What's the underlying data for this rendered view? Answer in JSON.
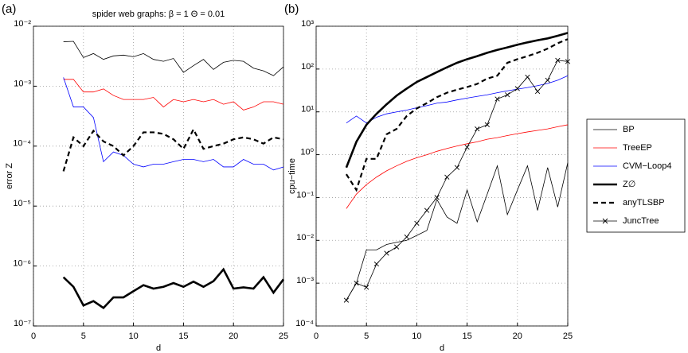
{
  "chart_data": [
    {
      "type": "line",
      "label": "(a)",
      "title": "spider web graphs: β = 1   Θ = 0.01",
      "xlabel": "d",
      "ylabel": "error Z",
      "xlim": [
        0,
        25
      ],
      "xticks": [
        0,
        5,
        10,
        15,
        20,
        25
      ],
      "ylim": [
        1e-07,
        0.01
      ],
      "log_y": true,
      "grid": true,
      "yticks": [
        {
          "value": 1e-07,
          "label": "10⁻⁷"
        },
        {
          "value": 1e-06,
          "label": "10⁻⁶"
        },
        {
          "value": 1e-05,
          "label": "10⁻⁵"
        },
        {
          "value": 0.0001,
          "label": "10⁻⁴"
        },
        {
          "value": 0.001,
          "label": "10⁻³"
        },
        {
          "value": 0.01,
          "label": "10⁻²"
        }
      ],
      "x": [
        3,
        4,
        5,
        6,
        7,
        8,
        9,
        10,
        11,
        12,
        13,
        14,
        15,
        16,
        17,
        18,
        19,
        20,
        21,
        22,
        23,
        24,
        25
      ],
      "series": [
        {
          "name": "BP",
          "color": "#000000",
          "line_width": 0.8,
          "values": [
            0.0055,
            0.0056,
            0.003,
            0.0035,
            0.0028,
            0.0032,
            0.0033,
            0.0031,
            0.0035,
            0.0028,
            0.0026,
            0.0029,
            0.0017,
            0.0022,
            0.0028,
            0.0019,
            0.0025,
            0.0027,
            0.0026,
            0.002,
            0.0018,
            0.0015,
            0.0021
          ]
        },
        {
          "name": "TreeEP",
          "color": "#ff0000",
          "line_width": 0.8,
          "values": [
            0.0013,
            0.0013,
            0.0008,
            0.0008,
            0.0009,
            0.0007,
            0.0006,
            0.0006,
            0.0006,
            0.00065,
            0.00045,
            0.0006,
            0.00055,
            0.0006,
            0.00055,
            0.0006,
            0.0005,
            0.00055,
            0.0004,
            0.00045,
            0.00055,
            0.00055,
            0.0005
          ]
        },
        {
          "name": "CVM−Loop4",
          "color": "#0000ff",
          "line_width": 0.8,
          "values": [
            0.0014,
            0.00045,
            0.00045,
            0.0003,
            5.5e-05,
            8e-05,
            7e-05,
            5e-05,
            4.5e-05,
            5e-05,
            5e-05,
            5.5e-05,
            6e-05,
            6e-05,
            5.5e-05,
            6e-05,
            4.5e-05,
            4.5e-05,
            6e-05,
            5e-05,
            5e-05,
            4e-05,
            4.5e-05
          ]
        },
        {
          "name": "Z∅",
          "color": "#000000",
          "line_width": 2.6,
          "values": [
            6.5e-07,
            4.5e-07,
            2.2e-07,
            2.6e-07,
            2e-07,
            3e-07,
            3e-07,
            3.8e-07,
            4.8e-07,
            4.2e-07,
            4.5e-07,
            5.2e-07,
            4.5e-07,
            5.5e-07,
            4.5e-07,
            5.6e-07,
            8.8e-07,
            4.2e-07,
            4.4e-07,
            4.2e-07,
            6.5e-07,
            3.6e-07,
            6e-07
          ]
        },
        {
          "name": "anyTLSBP",
          "color": "#000000",
          "line_width": 2.2,
          "line_style": "dashed",
          "values": [
            3.8e-05,
            0.00014,
            0.0001,
            0.00018,
            0.00012,
            0.0001,
            7e-05,
            0.0001,
            0.00017,
            0.00017,
            0.00016,
            0.00013,
            9e-05,
            0.00019,
            9e-05,
            0.0001,
            0.00011,
            0.00013,
            0.00014,
            0.00013,
            0.00011,
            0.00014,
            0.00013
          ]
        }
      ]
    },
    {
      "type": "line",
      "label": "(b)",
      "xlabel": "d",
      "ylabel": "cpu−time",
      "xlim": [
        0,
        25
      ],
      "xticks": [
        0,
        5,
        10,
        15,
        20,
        25
      ],
      "ylim": [
        0.0001,
        1000
      ],
      "log_y": true,
      "grid": true,
      "legend": "outside right",
      "yticks": [
        {
          "value": 0.0001,
          "label": "10⁻⁴"
        },
        {
          "value": 0.001,
          "label": "10⁻³"
        },
        {
          "value": 0.01,
          "label": "10⁻²"
        },
        {
          "value": 0.1,
          "label": "10⁻¹"
        },
        {
          "value": 1,
          "label": "10⁰"
        },
        {
          "value": 10,
          "label": "10¹"
        },
        {
          "value": 100,
          "label": "10²"
        },
        {
          "value": 1000,
          "label": "10³"
        }
      ],
      "x": [
        3,
        4,
        5,
        6,
        7,
        8,
        9,
        10,
        11,
        12,
        13,
        14,
        15,
        16,
        17,
        18,
        19,
        20,
        21,
        22,
        23,
        24,
        25
      ],
      "series": [
        {
          "name": "BP",
          "color": "#000000",
          "line_width": 0.8,
          "values": [
            0.0004,
            0.001,
            0.006,
            0.006,
            0.008,
            0.009,
            0.01,
            0.013,
            0.017,
            0.09,
            0.035,
            0.025,
            0.15,
            0.027,
            0.12,
            0.55,
            0.04,
            0.15,
            0.55,
            0.05,
            0.5,
            0.06,
            0.65
          ]
        },
        {
          "name": "TreeEP",
          "color": "#ff0000",
          "line_width": 0.8,
          "values": [
            0.055,
            0.12,
            0.2,
            0.3,
            0.42,
            0.55,
            0.7,
            0.85,
            1.0,
            1.2,
            1.4,
            1.6,
            1.8,
            2.0,
            2.3,
            2.5,
            2.8,
            3.1,
            3.4,
            3.7,
            4.0,
            4.5,
            5.0
          ]
        },
        {
          "name": "CVM−Loop4",
          "color": "#0000ff",
          "line_width": 0.8,
          "values": [
            5.5,
            8,
            5.5,
            7.5,
            9,
            10,
            11,
            12.5,
            14,
            16,
            17,
            19,
            21,
            23,
            25,
            28,
            31,
            34,
            37,
            41,
            46,
            55,
            70
          ]
        },
        {
          "name": "Z∅",
          "color": "#000000",
          "line_width": 2.6,
          "values": [
            0.5,
            2,
            5,
            9,
            15,
            24,
            35,
            50,
            65,
            85,
            110,
            140,
            170,
            200,
            240,
            280,
            320,
            370,
            420,
            470,
            520,
            600,
            700
          ]
        },
        {
          "name": "anyTLSBP",
          "color": "#000000",
          "line_width": 2.2,
          "line_style": "dashed",
          "values": [
            0.35,
            0.15,
            0.8,
            0.8,
            3,
            4,
            8,
            12,
            16,
            22,
            28,
            33,
            38,
            45,
            60,
            70,
            140,
            170,
            200,
            240,
            300,
            400,
            500
          ]
        },
        {
          "name": "JuncTree",
          "color": "#000000",
          "line_width": 0.8,
          "marker": "x",
          "values": [
            0.0004,
            0.001,
            0.0008,
            0.0028,
            0.005,
            0.007,
            0.012,
            0.025,
            0.05,
            0.1,
            0.3,
            0.5,
            1.5,
            4,
            5,
            20,
            25,
            35,
            65,
            30,
            55,
            160,
            150
          ]
        }
      ]
    }
  ]
}
